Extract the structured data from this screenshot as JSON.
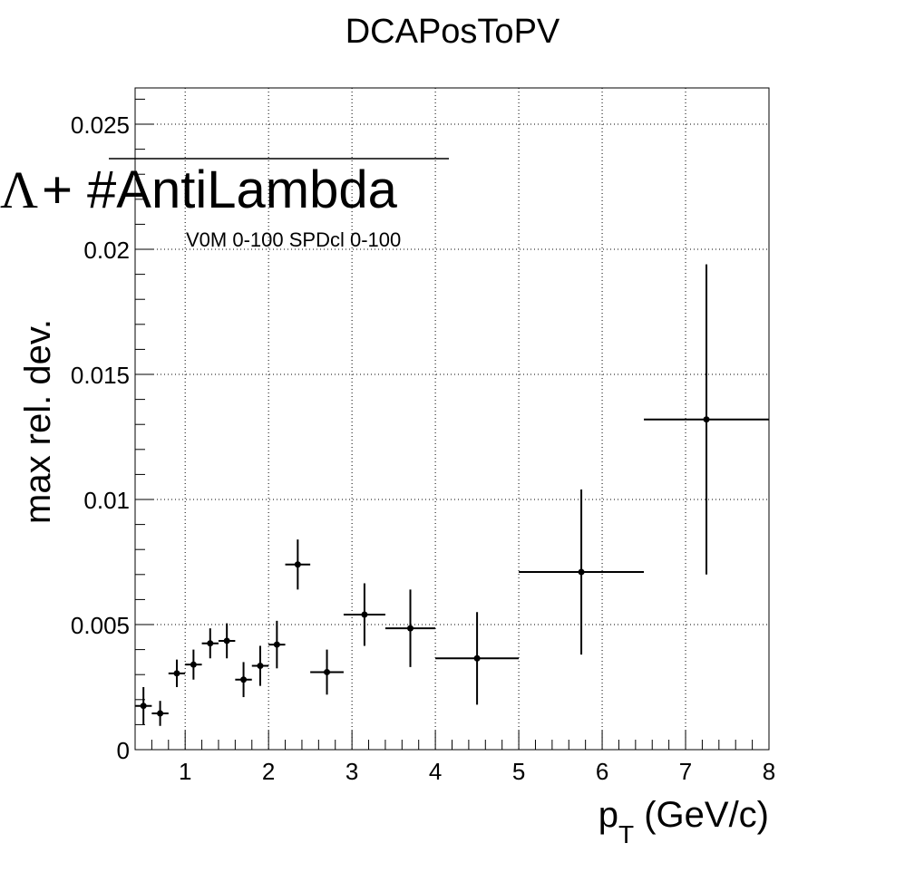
{
  "chart_data": {
    "type": "scatter",
    "title": "DCAPosToPV",
    "xlabel_main": "p",
    "xlabel_sub": "T",
    "xlabel_tail": " (GeV/c)",
    "ylabel": "max rel. dev.",
    "xlim": [
      0.4,
      8.0
    ],
    "ylim": [
      0,
      0.02645
    ],
    "grid": true,
    "xticks": [
      1,
      2,
      3,
      4,
      5,
      6,
      7,
      8
    ],
    "xtick_labels": [
      "1",
      "2",
      "3",
      "4",
      "5",
      "6",
      "7",
      "8"
    ],
    "yticks": [
      0,
      0.005,
      0.01,
      0.015,
      0.02,
      0.025
    ],
    "ytick_labels": [
      "0",
      "0.005",
      "0.01",
      "0.015",
      "0.02",
      "0.025"
    ],
    "legend": {
      "entry_symbol": "Λ",
      "entry_text": "+ #AntiLambda",
      "subtitle": "V0M 0-100 SPDcl 0-100",
      "placement": "top-left"
    },
    "series": [
      {
        "points": [
          {
            "x": 0.5,
            "xlo": 0.4,
            "xhi": 0.6,
            "y": 0.00175,
            "yerr": 0.00075
          },
          {
            "x": 0.7,
            "xlo": 0.6,
            "xhi": 0.8,
            "y": 0.00145,
            "yerr": 0.0005
          },
          {
            "x": 0.9,
            "xlo": 0.8,
            "xhi": 1.0,
            "y": 0.00305,
            "yerr": 0.00055
          },
          {
            "x": 1.1,
            "xlo": 1.0,
            "xhi": 1.2,
            "y": 0.0034,
            "yerr": 0.0006
          },
          {
            "x": 1.3,
            "xlo": 1.2,
            "xhi": 1.4,
            "y": 0.00425,
            "yerr": 0.0006
          },
          {
            "x": 1.5,
            "xlo": 1.4,
            "xhi": 1.6,
            "y": 0.00435,
            "yerr": 0.0007
          },
          {
            "x": 1.7,
            "xlo": 1.6,
            "xhi": 1.8,
            "y": 0.0028,
            "yerr": 0.0007
          },
          {
            "x": 1.9,
            "xlo": 1.8,
            "xhi": 2.0,
            "y": 0.00335,
            "yerr": 0.0008
          },
          {
            "x": 2.1,
            "xlo": 2.0,
            "xhi": 2.2,
            "y": 0.0042,
            "yerr": 0.00095
          },
          {
            "x": 2.35,
            "xlo": 2.2,
            "xhi": 2.5,
            "y": 0.0074,
            "yerr": 0.001
          },
          {
            "x": 2.7,
            "xlo": 2.5,
            "xhi": 2.9,
            "y": 0.0031,
            "yerr": 0.0009
          },
          {
            "x": 3.15,
            "xlo": 2.9,
            "xhi": 3.4,
            "y": 0.0054,
            "yerr": 0.00125
          },
          {
            "x": 3.7,
            "xlo": 3.4,
            "xhi": 4.0,
            "y": 0.00485,
            "yerr": 0.00155
          },
          {
            "x": 4.5,
            "xlo": 4.0,
            "xhi": 5.0,
            "y": 0.00365,
            "yerr": 0.00185
          },
          {
            "x": 5.75,
            "xlo": 5.0,
            "xhi": 6.5,
            "y": 0.0071,
            "yerr": 0.0033
          },
          {
            "x": 7.25,
            "xlo": 6.5,
            "xhi": 8.0,
            "y": 0.0132,
            "yerr": 0.0062
          }
        ]
      }
    ]
  }
}
